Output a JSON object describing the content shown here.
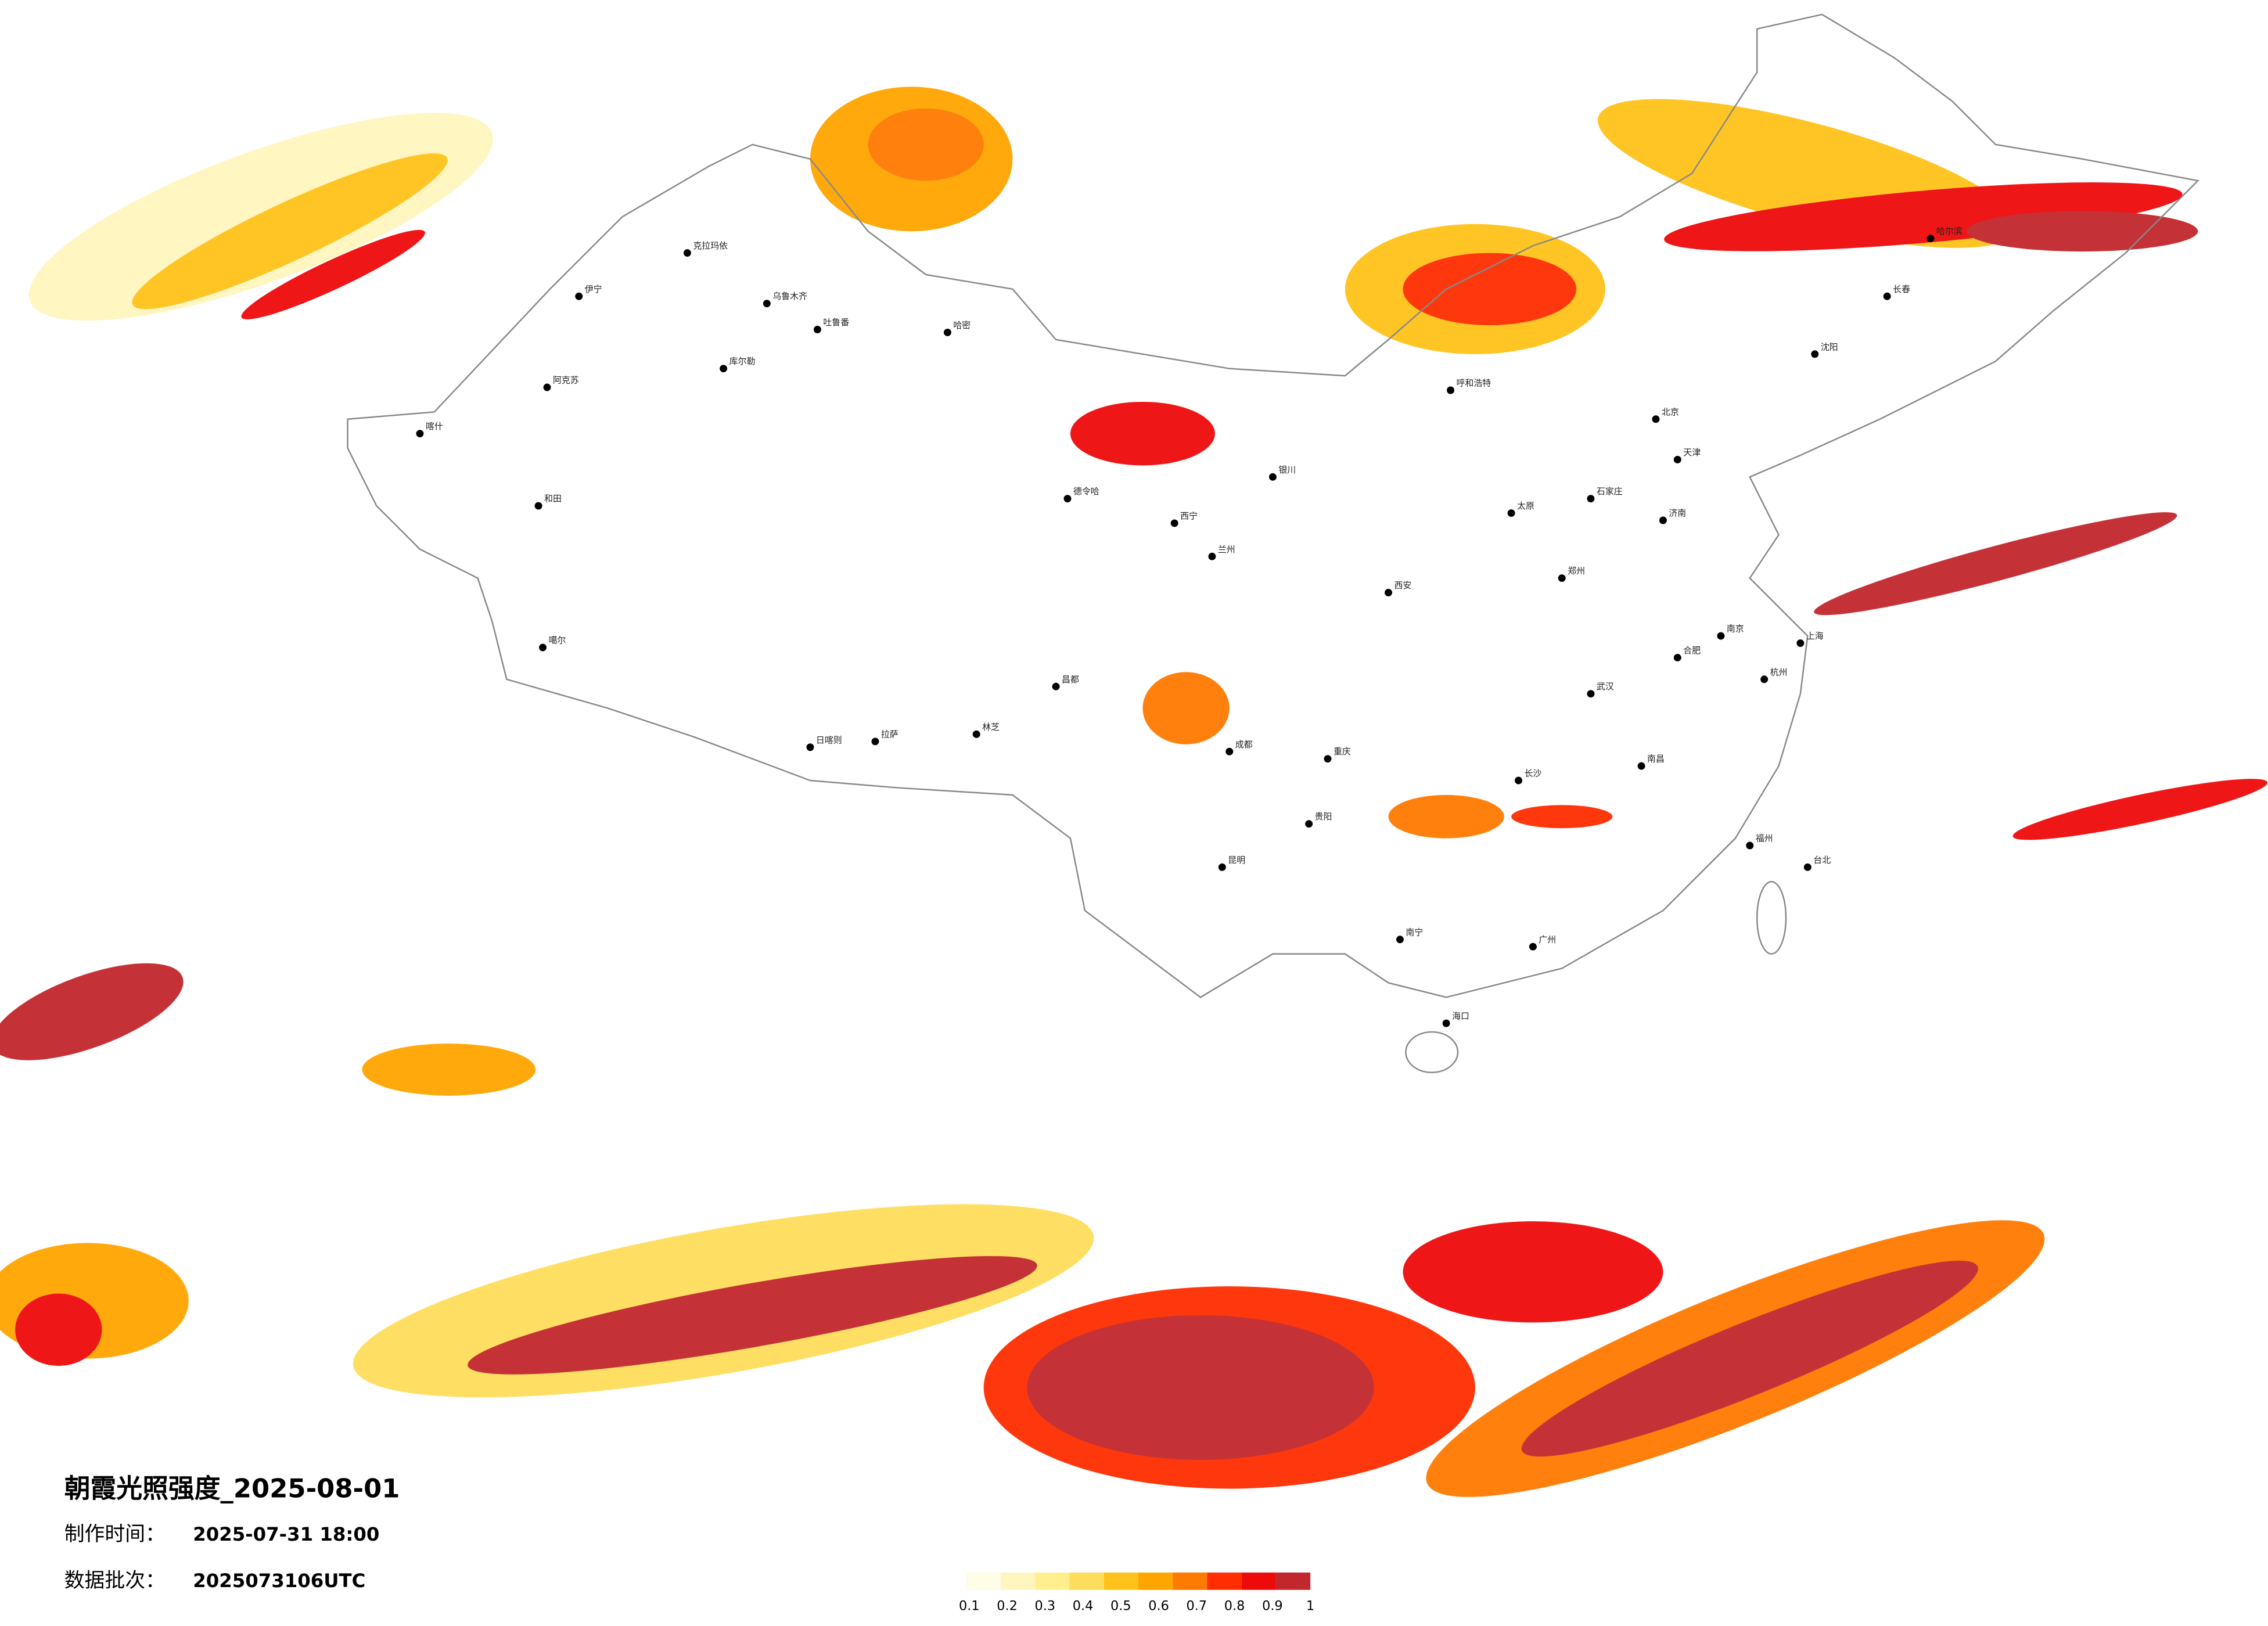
{
  "title": "朝霞光照强度_2025-08-01",
  "production": {
    "label": "制作时间：",
    "value": "2025-07-31 18:00"
  },
  "batch": {
    "label": "数据批次：",
    "value": "2025073106UTC"
  },
  "legend": {
    "colors": [
      "#fffce8",
      "#fff6bf",
      "#ffef8f",
      "#ffdd5c",
      "#ffc21a",
      "#ffa500",
      "#ff7a00",
      "#ff2d00",
      "#ee0a0a",
      "#c1272d"
    ],
    "ticks": [
      0.1,
      0.2,
      0.3,
      0.4,
      0.5,
      0.6,
      0.7,
      0.8,
      0.9,
      1
    ]
  },
  "cities": [
    "克拉玛依",
    "乌鲁木齐",
    "阿克苏",
    "喀什",
    "和田",
    "库尔勒",
    "哈密",
    "吐鲁番",
    "伊宁",
    "德令哈",
    "日喀则",
    "拉萨",
    "林芝",
    "噶尔",
    "昌都",
    "西宁",
    "兰州",
    "银川",
    "呼和浩特",
    "北京",
    "天津",
    "石家庄",
    "太原",
    "济南",
    "郑州",
    "西安",
    "成都",
    "重庆",
    "贵阳",
    "昆明",
    "南宁",
    "广州",
    "长沙",
    "武汉",
    "南昌",
    "福州",
    "杭州",
    "上海",
    "南京",
    "合肥",
    "海口",
    "台北",
    "沈阳",
    "长春",
    "哈尔滨"
  ]
}
